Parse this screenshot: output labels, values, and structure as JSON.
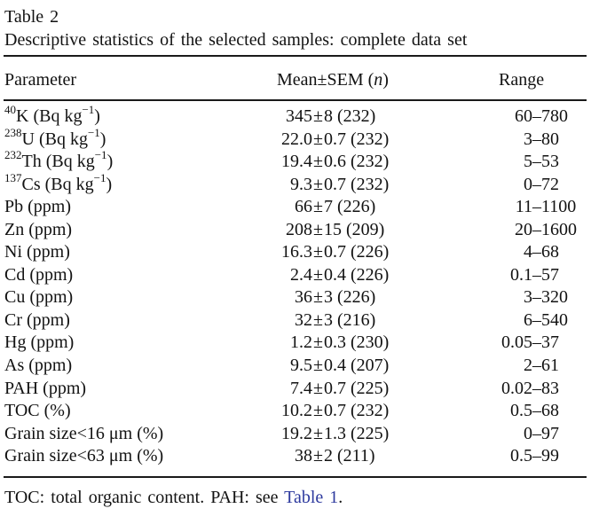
{
  "caption": {
    "label": "Table 2",
    "description": "Descriptive statistics of the selected samples: complete data set"
  },
  "header": {
    "parameter": "Parameter",
    "mean_prefix": "Mean±SEM (",
    "mean_n": "n",
    "mean_suffix": ")",
    "range": "Range"
  },
  "symbols": {
    "plus_minus": "±",
    "range_dash": "–"
  },
  "colors": {
    "background": "#ffffff",
    "text": "#121212",
    "rule": "#1a1a1a",
    "link": "#2d3a9e"
  },
  "rows": [
    {
      "param": [
        {
          "sup": "40"
        },
        {
          "txt": "K (Bq kg"
        },
        {
          "sup": "−1"
        },
        {
          "txt": ")"
        }
      ],
      "mean_left": "345",
      "mean_right": "8 (232)",
      "range_lo": "60",
      "range_hi": "780"
    },
    {
      "param": [
        {
          "sup": "238"
        },
        {
          "txt": "U (Bq kg"
        },
        {
          "sup": "−1"
        },
        {
          "txt": ")"
        }
      ],
      "mean_left": "22.0",
      "mean_right": "0.7 (232)",
      "range_lo": "3",
      "range_hi": "80"
    },
    {
      "param": [
        {
          "sup": "232"
        },
        {
          "txt": "Th (Bq kg"
        },
        {
          "sup": "−1"
        },
        {
          "txt": ")"
        }
      ],
      "mean_left": "19.4",
      "mean_right": "0.6 (232)",
      "range_lo": "5",
      "range_hi": "53"
    },
    {
      "param": [
        {
          "sup": "137"
        },
        {
          "txt": "Cs (Bq kg"
        },
        {
          "sup": "−1"
        },
        {
          "txt": ")"
        }
      ],
      "mean_left": "9.3",
      "mean_right": "0.7 (232)",
      "range_lo": "0",
      "range_hi": "72"
    },
    {
      "param": [
        {
          "txt": "Pb (ppm)"
        }
      ],
      "mean_left": "66",
      "mean_right": "7 (226)",
      "range_lo": "11",
      "range_hi": "1100"
    },
    {
      "param": [
        {
          "txt": "Zn (ppm)"
        }
      ],
      "mean_left": "208",
      "mean_right": "15 (209)",
      "range_lo": "20",
      "range_hi": "1600"
    },
    {
      "param": [
        {
          "txt": "Ni (ppm)"
        }
      ],
      "mean_left": "16.3",
      "mean_right": "0.7 (226)",
      "range_lo": "4",
      "range_hi": "68"
    },
    {
      "param": [
        {
          "txt": "Cd (ppm)"
        }
      ],
      "mean_left": "2.4",
      "mean_right": "0.4 (226)",
      "range_lo": "0.1",
      "range_hi": "57"
    },
    {
      "param": [
        {
          "txt": "Cu (ppm)"
        }
      ],
      "mean_left": "36",
      "mean_right": "3 (226)",
      "range_lo": "3",
      "range_hi": "320"
    },
    {
      "param": [
        {
          "txt": "Cr (ppm)"
        }
      ],
      "mean_left": "32",
      "mean_right": "3 (216)",
      "range_lo": "6",
      "range_hi": "540"
    },
    {
      "param": [
        {
          "txt": "Hg (ppm)"
        }
      ],
      "mean_left": "1.2",
      "mean_right": "0.3 (230)",
      "range_lo": "0.05",
      "range_hi": "37"
    },
    {
      "param": [
        {
          "txt": "As (ppm)"
        }
      ],
      "mean_left": "9.5",
      "mean_right": "0.4 (207)",
      "range_lo": "2",
      "range_hi": "61"
    },
    {
      "param": [
        {
          "txt": "PAH (ppm)"
        }
      ],
      "mean_left": "7.4",
      "mean_right": "0.7 (225)",
      "range_lo": "0.02",
      "range_hi": "83"
    },
    {
      "param": [
        {
          "txt": "TOC (%)"
        }
      ],
      "mean_left": "10.2",
      "mean_right": "0.7 (232)",
      "range_lo": "0.5",
      "range_hi": "68"
    },
    {
      "param": [
        {
          "txt": "Grain size<16 μm (%)"
        }
      ],
      "mean_left": "19.2",
      "mean_right": "1.3 (225)",
      "range_lo": "0",
      "range_hi": "97"
    },
    {
      "param": [
        {
          "txt": "Grain size<63 μm (%)"
        }
      ],
      "mean_left": "38",
      "mean_right": "2 (211)",
      "range_lo": "0.5",
      "range_hi": "99"
    }
  ],
  "footnote": {
    "before": "TOC: total organic content. PAH: see ",
    "link": "Table 1",
    "after": "."
  }
}
